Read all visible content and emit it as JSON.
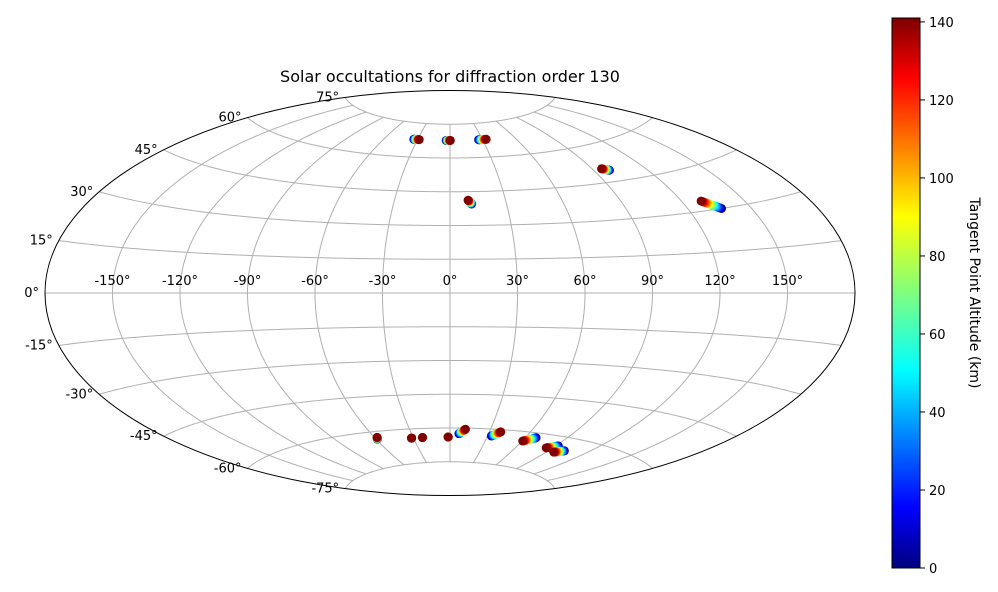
{
  "chart_data": {
    "type": "scatter",
    "projection": "aitoff",
    "title": "Solar occultations for diffraction order 130",
    "xlabel": "",
    "ylabel": "",
    "x_ticks": [
      "-150°",
      "-120°",
      "-90°",
      "-60°",
      "-30°",
      "0°",
      "30°",
      "60°",
      "90°",
      "120°",
      "150°"
    ],
    "x_tick_values": [
      -150,
      -120,
      -90,
      -60,
      -30,
      0,
      30,
      60,
      90,
      120,
      150
    ],
    "y_ticks": [
      "-75°",
      "-60°",
      "-45°",
      "-30°",
      "-15°",
      "0°",
      "15°",
      "30°",
      "45°",
      "60°",
      "75°"
    ],
    "y_tick_values": [
      -75,
      -60,
      -45,
      -30,
      -15,
      0,
      15,
      30,
      45,
      60,
      75
    ],
    "grid": true,
    "colormap": "jet",
    "colorbar": {
      "label": "Tangent Point Altitude (km)",
      "min": 0,
      "max": 141,
      "ticks": [
        "0",
        "20",
        "40",
        "60",
        "80",
        "100",
        "120",
        "140"
      ],
      "tick_values": [
        0,
        20,
        40,
        60,
        80,
        100,
        120,
        140
      ]
    },
    "tracks": [
      {
        "lon_start": -33.5,
        "lat_start": 67.8,
        "lon_end": -28.5,
        "lat_end": 67.8
      },
      {
        "lon_start": -3.5,
        "lat_start": 67.8,
        "lon_end": 0.3,
        "lat_end": 67.8
      },
      {
        "lon_start": 26.5,
        "lat_start": 67.8,
        "lon_end": 33.5,
        "lat_end": 67.8
      },
      {
        "lon_start": 11.5,
        "lat_start": 39.5,
        "lon_end": 9.8,
        "lat_end": 41.2
      },
      {
        "lon_start": 99.0,
        "lat_start": 49.5,
        "lon_end": 95.5,
        "lat_end": 50.5
      },
      {
        "lon_start": 136.0,
        "lat_start": 30.0,
        "lon_end": 129.5,
        "lat_end": 33.5
      },
      {
        "lon_start": -59.0,
        "lat_start": -63.2,
        "lon_end": -58.0,
        "lat_end": -62.5
      },
      {
        "lon_start": -31.5,
        "lat_start": -64.0,
        "lon_end": -31.5,
        "lat_end": -64.0
      },
      {
        "lon_start": -22.5,
        "lat_start": -64.0,
        "lon_end": -22.5,
        "lat_end": -64.0
      },
      {
        "lon_start": -1.5,
        "lat_start": -64.0,
        "lon_end": -1.5,
        "lat_end": -64.0
      },
      {
        "lon_start": 7.0,
        "lat_start": -62.5,
        "lon_end": 11.5,
        "lat_end": -60.5
      },
      {
        "lon_start": 33.0,
        "lat_start": -63.0,
        "lon_end": 38.5,
        "lat_end": -61.0
      },
      {
        "lon_start": 68.0,
        "lat_start": -62.0,
        "lon_end": 60.5,
        "lat_end": -64.0
      },
      {
        "lon_start": 92.0,
        "lat_start": -63.8,
        "lon_end": 85.0,
        "lat_end": -65.3
      },
      {
        "lon_start": 102.0,
        "lat_start": -65.0,
        "lon_end": 96.0,
        "lat_end": -66.3
      }
    ]
  }
}
